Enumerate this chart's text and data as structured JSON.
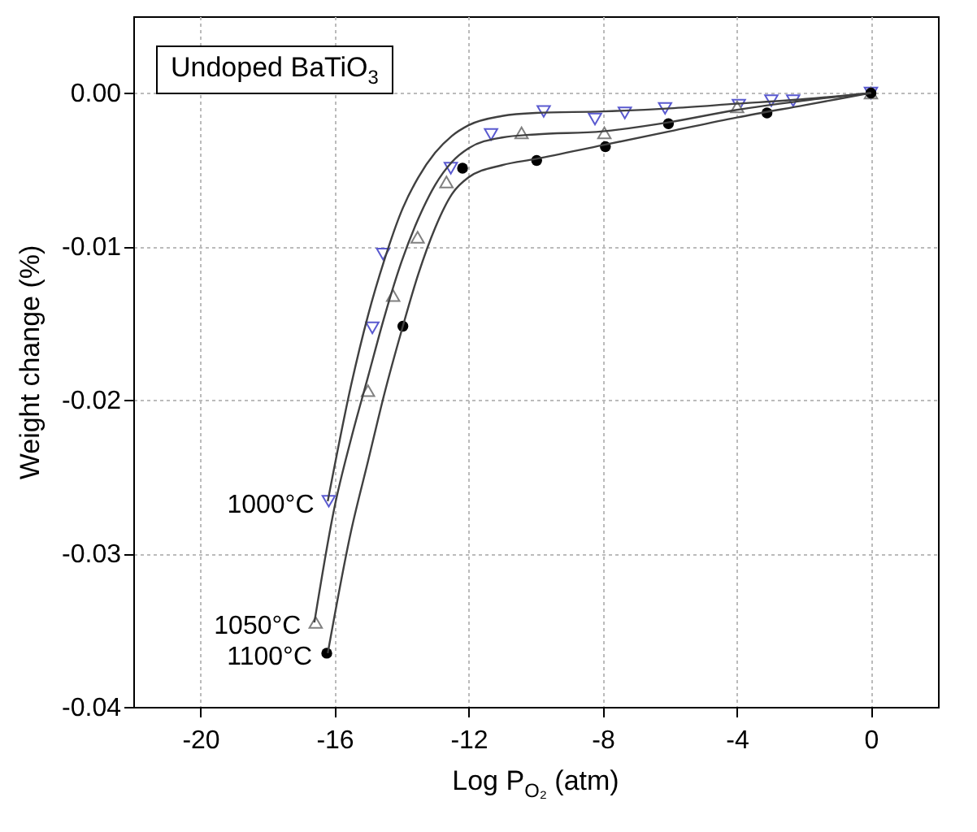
{
  "chart_data": {
    "type": "scatter",
    "xlabel": "Log P$_{O₂}$ (atm)",
    "ylabel": "Weight change (%)",
    "annotations": [
      "Undoped BaTiO$_{3}$"
    ],
    "xlim": [
      -22,
      2
    ],
    "xticks": [
      -20,
      -16,
      -12,
      -8,
      -4,
      0
    ],
    "ylim": [
      -0.04,
      0.005
    ],
    "yticks": [
      {
        "value": -0.04,
        "label": "-0.04"
      },
      {
        "value": -0.03,
        "label": "-0.03"
      },
      {
        "value": -0.02,
        "label": "-0.02"
      },
      {
        "value": -0.01,
        "label": "-0.01"
      },
      {
        "value": 0,
        "label": "0.00"
      }
    ],
    "grid": true,
    "series": [
      {
        "name": "1000°C",
        "marker": "triangle-down",
        "color": "#5a5ad0",
        "x": [
          -16.17,
          -14.87,
          -14.55,
          -12.53,
          -11.33,
          -9.76,
          -8.23,
          -7.34,
          -6.14,
          -3.94,
          -2.97,
          -2.32,
          0
        ],
        "values": [
          -0.0266,
          -0.0153,
          -0.0105,
          -0.0049,
          -0.0027,
          -0.0012,
          -0.0017,
          -0.0013,
          -0.001,
          -0.0008,
          -0.0005,
          -0.0005,
          0
        ]
      },
      {
        "name": "1050°C",
        "marker": "triangle-up",
        "color": "#808080",
        "x": [
          -16.56,
          -15.0,
          -14.25,
          -13.52,
          -12.66,
          -10.42,
          -7.95,
          -3.99,
          0
        ],
        "values": [
          -0.0345,
          -0.0194,
          -0.0132,
          -0.0094,
          -0.0058,
          -0.0026,
          -0.0026,
          -0.0009,
          0
        ]
      },
      {
        "name": "1100°C",
        "marker": "circle",
        "color": "#000000",
        "x": [
          -16.23,
          -13.96,
          -12.18,
          -9.97,
          -7.92,
          -6.04,
          -3.1,
          0
        ],
        "values": [
          -0.0365,
          -0.0152,
          -0.0049,
          -0.0044,
          -0.0035,
          -0.002,
          -0.0013,
          0
        ]
      },
      {
        "type": "line",
        "color": "#404040",
        "x": [
          -16.2,
          -15.5,
          -15,
          -14.5,
          -14,
          -13.5,
          -13,
          -12.5,
          -12,
          -11,
          -10,
          -8,
          -6,
          -4,
          -2,
          0
        ],
        "values": [
          -0.0266,
          -0.019,
          -0.0145,
          -0.0108,
          -0.0077,
          -0.0055,
          -0.0039,
          -0.0028,
          -0.0021,
          -0.0015,
          -0.0013,
          -0.0012,
          -0.001,
          -0.0007,
          -0.0004,
          0
        ]
      },
      {
        "type": "line",
        "color": "#404040",
        "x": [
          -16.6,
          -16,
          -15.5,
          -15,
          -14.5,
          -14,
          -13.5,
          -13,
          -12.5,
          -12,
          -11,
          -10,
          -8,
          -6,
          -4,
          -2,
          0
        ],
        "values": [
          -0.0345,
          -0.027,
          -0.0225,
          -0.0185,
          -0.0145,
          -0.011,
          -0.0082,
          -0.006,
          -0.0045,
          -0.0036,
          -0.0029,
          -0.0027,
          -0.0025,
          -0.0019,
          -0.0011,
          -0.0005,
          0
        ]
      },
      {
        "type": "line",
        "color": "#404040",
        "x": [
          -16.2,
          -15.5,
          -15,
          -14.5,
          -14,
          -13.5,
          -13,
          -12.5,
          -12,
          -11,
          -10,
          -8,
          -6,
          -4,
          -2,
          0
        ],
        "values": [
          -0.0365,
          -0.0285,
          -0.024,
          -0.0195,
          -0.0155,
          -0.0118,
          -0.0088,
          -0.0066,
          -0.0055,
          -0.0047,
          -0.0043,
          -0.0034,
          -0.0025,
          -0.0016,
          -0.0008,
          0
        ]
      }
    ]
  }
}
